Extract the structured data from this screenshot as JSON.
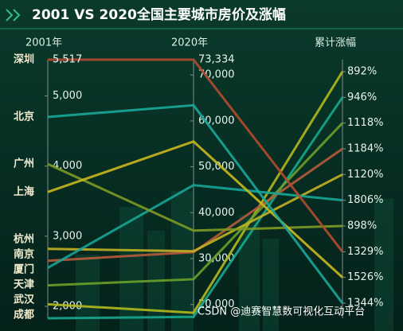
{
  "chart_data": {
    "type": "parallel",
    "title": "2001 VS 2020全国主要城市房价及涨幅",
    "watermark": "CSDN @迪赛智慧数可视化互动平台",
    "axes": [
      {
        "title": "2001年",
        "ylim": [
          1830,
          5517
        ],
        "yticks": [
          {
            "value": 2000,
            "label": "2,000"
          },
          {
            "value": 3000,
            "label": "3,000"
          },
          {
            "value": 4000,
            "label": "4,000"
          },
          {
            "value": 5000,
            "label": "5,000"
          }
        ]
      },
      {
        "title": "2020年",
        "ylim": [
          17000,
          73334
        ],
        "yticks": [
          {
            "value": 20000,
            "label": "20,000"
          },
          {
            "value": 30000,
            "label": "30,000"
          },
          {
            "value": 40000,
            "label": "40,000"
          },
          {
            "value": 50000,
            "label": "50,000"
          },
          {
            "value": 60000,
            "label": "60,000"
          },
          {
            "value": 70000,
            "label": "70,000"
          }
        ]
      },
      {
        "title": "累计涨幅"
      }
    ],
    "series": [
      {
        "name": "武汉",
        "color": "#b3b81e",
        "values": [
          2030,
          18200,
          892
        ],
        "value_labels": [
          null,
          null,
          "892%"
        ]
      },
      {
        "name": "成都",
        "color": "#16a88e",
        "values": [
          1830,
          17300,
          946
        ],
        "value_labels": [
          null,
          null,
          "946%"
        ]
      },
      {
        "name": "天津",
        "color": "#6aa02a",
        "values": [
          2300,
          25500,
          1118
        ],
        "value_labels": [
          null,
          null,
          "1118%"
        ]
      },
      {
        "name": "南京",
        "color": "#b85a3a",
        "values": [
          2650,
          31400,
          1184
        ],
        "value_labels": [
          null,
          null,
          "1184%"
        ]
      },
      {
        "name": "杭州",
        "color": "#c4b022",
        "values": [
          2820,
          31600,
          1120
        ],
        "value_labels": [
          null,
          null,
          "1120%"
        ]
      },
      {
        "name": "厦门",
        "color": "#17a596",
        "values": [
          2550,
          46000,
          1806
        ],
        "value_labels": [
          null,
          null,
          "1806%"
        ]
      },
      {
        "name": "广州",
        "color": "#7d9a22",
        "values": [
          4030,
          36100,
          898
        ],
        "value_labels": [
          null,
          null,
          "898%"
        ]
      },
      {
        "name": "深圳",
        "color": "#b24a30",
        "values": [
          5517,
          73334,
          1329
        ],
        "value_labels": [
          "5,517",
          "73,334",
          "1329%"
        ]
      },
      {
        "name": "上海",
        "color": "#c9b81d",
        "values": [
          3630,
          55500,
          1526
        ],
        "value_labels": [
          null,
          null,
          "1526%"
        ]
      },
      {
        "name": "北京",
        "color": "#18a99a",
        "values": [
          4700,
          63400,
          1344
        ],
        "value_labels": [
          null,
          null,
          "1344%"
        ]
      }
    ]
  }
}
